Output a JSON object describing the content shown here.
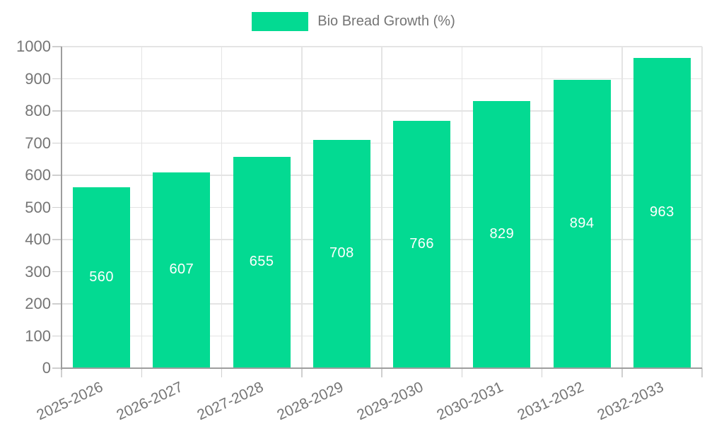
{
  "chart_data": {
    "type": "bar",
    "title": "",
    "legend": "Bio Bread Growth (%)",
    "legend_position": "top-center",
    "categories": [
      "2025-2026",
      "2026-2027",
      "2027-2028",
      "2028-2029",
      "2029-2030",
      "2030-2031",
      "2031-2032",
      "2032-2033"
    ],
    "series": [
      {
        "name": "Bio Bread Growth (%)",
        "values": [
          560,
          607,
          655,
          708,
          766,
          829,
          894,
          963
        ]
      }
    ],
    "bar_labels": [
      560,
      607,
      655,
      708,
      766,
      829,
      894,
      963
    ],
    "xlabel": "",
    "ylabel": "",
    "ylim": [
      0,
      1000
    ],
    "y_ticks": [
      0,
      100,
      200,
      300,
      400,
      500,
      600,
      700,
      800,
      900,
      1000
    ],
    "grid": "horizontal-and-vertical"
  },
  "colors": {
    "bar": "#03DA92",
    "bar_label": "#FFFFFF",
    "grid": "#E4E4E4",
    "axis": "#9E9E9E",
    "tick": "#CFCFCF",
    "text": "#757575"
  }
}
